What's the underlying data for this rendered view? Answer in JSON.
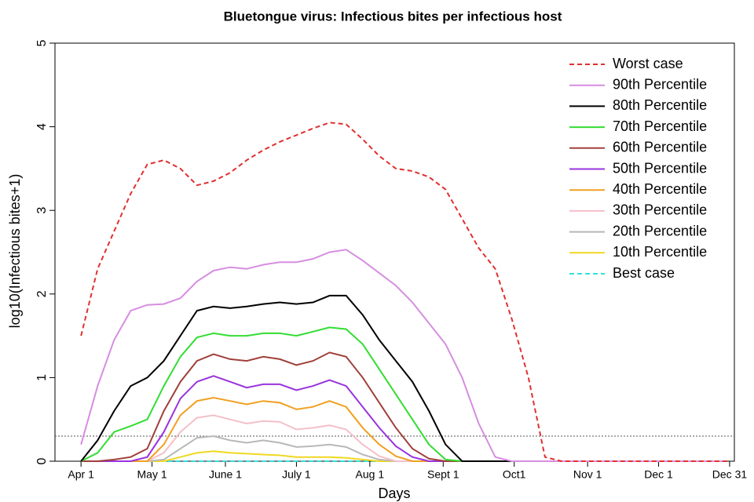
{
  "chart_data": {
    "type": "line",
    "title": "Bluetongue virus: Infectious bites per infectious host",
    "xlabel": "Days",
    "ylabel": "log10(Infectious bites+1)",
    "x": [
      0,
      7,
      14,
      21,
      28,
      35,
      42,
      49,
      56,
      63,
      70,
      77,
      84,
      91,
      98,
      105,
      112,
      119,
      126,
      133,
      140,
      147,
      154,
      161,
      168,
      175,
      182,
      189,
      196,
      203,
      210,
      217,
      224,
      231,
      238,
      245,
      252,
      259,
      266,
      273
    ],
    "xlim": [
      -11,
      276
    ],
    "ylim": [
      0,
      5
    ],
    "xticks": [
      {
        "value": 0,
        "label": "Apr 1"
      },
      {
        "value": 30,
        "label": "May 1"
      },
      {
        "value": 61,
        "label": "June 1"
      },
      {
        "value": 91,
        "label": "July 1"
      },
      {
        "value": 122,
        "label": "Aug 1"
      },
      {
        "value": 153,
        "label": "Sept 1"
      },
      {
        "value": 183,
        "label": "Oct1"
      },
      {
        "value": 214,
        "label": "Nov 1"
      },
      {
        "value": 244,
        "label": "Dec 1"
      },
      {
        "value": 274,
        "label": "Dec 31"
      }
    ],
    "yticks": [
      0,
      1,
      2,
      3,
      4,
      5
    ],
    "hline": 0.3,
    "legend": "top-right",
    "series": [
      {
        "name": "Worst case",
        "color": "#e03030",
        "dashed": true,
        "values": [
          1.5,
          2.3,
          2.75,
          3.2,
          3.55,
          3.6,
          3.5,
          3.3,
          3.35,
          3.45,
          3.6,
          3.72,
          3.82,
          3.9,
          3.98,
          4.05,
          4.03,
          3.85,
          3.65,
          3.5,
          3.47,
          3.4,
          3.25,
          2.9,
          2.55,
          2.3,
          1.7,
          1.0,
          0.05,
          0,
          0,
          0,
          0,
          0,
          0,
          0,
          0,
          0,
          0,
          0
        ]
      },
      {
        "name": "90th Percentile",
        "color": "#d68ee0",
        "dashed": false,
        "values": [
          0.2,
          0.9,
          1.45,
          1.8,
          1.87,
          1.88,
          1.95,
          2.15,
          2.28,
          2.32,
          2.3,
          2.35,
          2.38,
          2.38,
          2.42,
          2.5,
          2.53,
          2.4,
          2.25,
          2.1,
          1.9,
          1.65,
          1.4,
          1.0,
          0.45,
          0.05,
          0,
          0,
          0,
          0,
          0,
          0,
          0,
          0,
          0,
          0,
          0,
          0,
          0,
          0
        ]
      },
      {
        "name": "80th Percentile",
        "color": "#000000",
        "dashed": false,
        "values": [
          0,
          0.25,
          0.6,
          0.9,
          1.0,
          1.2,
          1.5,
          1.8,
          1.85,
          1.83,
          1.85,
          1.88,
          1.9,
          1.88,
          1.9,
          1.98,
          1.98,
          1.75,
          1.45,
          1.2,
          0.95,
          0.6,
          0.2,
          0,
          0,
          0,
          0,
          0,
          0,
          0,
          0,
          0,
          0,
          0,
          0,
          0,
          0,
          0,
          0,
          0
        ]
      },
      {
        "name": "70th Percentile",
        "color": "#33dd33",
        "dashed": false,
        "values": [
          0,
          0.1,
          0.35,
          0.42,
          0.5,
          0.9,
          1.25,
          1.48,
          1.53,
          1.5,
          1.5,
          1.53,
          1.53,
          1.5,
          1.55,
          1.6,
          1.58,
          1.4,
          1.1,
          0.8,
          0.5,
          0.2,
          0.02,
          0,
          0,
          0,
          0,
          0,
          0,
          0,
          0,
          0,
          0,
          0,
          0,
          0,
          0,
          0,
          0,
          0
        ]
      },
      {
        "name": "60th Percentile",
        "color": "#a0403a",
        "dashed": false,
        "values": [
          0,
          0,
          0.02,
          0.05,
          0.15,
          0.6,
          0.95,
          1.2,
          1.28,
          1.22,
          1.2,
          1.25,
          1.22,
          1.15,
          1.2,
          1.3,
          1.25,
          1.0,
          0.7,
          0.4,
          0.15,
          0.03,
          0,
          0,
          0,
          0,
          0,
          0,
          0,
          0,
          0,
          0,
          0,
          0,
          0,
          0,
          0,
          0,
          0,
          0
        ]
      },
      {
        "name": "50th Percentile",
        "color": "#9933dd",
        "dashed": false,
        "values": [
          0,
          0,
          0,
          0,
          0.05,
          0.35,
          0.75,
          0.95,
          1.02,
          0.95,
          0.88,
          0.92,
          0.92,
          0.85,
          0.9,
          0.97,
          0.9,
          0.65,
          0.4,
          0.18,
          0.05,
          0,
          0,
          0,
          0,
          0,
          0,
          0,
          0,
          0,
          0,
          0,
          0,
          0,
          0,
          0,
          0,
          0,
          0,
          0
        ]
      },
      {
        "name": "40th Percentile",
        "color": "#f0a020",
        "dashed": false,
        "values": [
          0,
          0,
          0,
          0,
          0,
          0.2,
          0.55,
          0.72,
          0.76,
          0.72,
          0.68,
          0.72,
          0.7,
          0.62,
          0.65,
          0.72,
          0.65,
          0.4,
          0.2,
          0.06,
          0,
          0,
          0,
          0,
          0,
          0,
          0,
          0,
          0,
          0,
          0,
          0,
          0,
          0,
          0,
          0,
          0,
          0,
          0,
          0
        ]
      },
      {
        "name": "30th Percentile",
        "color": "#f4c0c8",
        "dashed": false,
        "values": [
          0,
          0,
          0,
          0,
          0,
          0.1,
          0.35,
          0.52,
          0.55,
          0.5,
          0.45,
          0.48,
          0.47,
          0.38,
          0.4,
          0.43,
          0.38,
          0.2,
          0.06,
          0,
          0,
          0,
          0,
          0,
          0,
          0,
          0,
          0,
          0,
          0,
          0,
          0,
          0,
          0,
          0,
          0,
          0,
          0,
          0,
          0
        ]
      },
      {
        "name": "20th Percentile",
        "color": "#b8b8b8",
        "dashed": false,
        "values": [
          0,
          0,
          0,
          0,
          0,
          0.02,
          0.15,
          0.28,
          0.3,
          0.25,
          0.22,
          0.25,
          0.22,
          0.17,
          0.18,
          0.2,
          0.17,
          0.08,
          0.02,
          0,
          0,
          0,
          0,
          0,
          0,
          0,
          0,
          0,
          0,
          0,
          0,
          0,
          0,
          0,
          0,
          0,
          0,
          0,
          0,
          0
        ]
      },
      {
        "name": "10th Percentile",
        "color": "#f0d820",
        "dashed": false,
        "values": [
          0,
          0,
          0,
          0,
          0,
          0,
          0.05,
          0.1,
          0.12,
          0.1,
          0.09,
          0.08,
          0.07,
          0.05,
          0.05,
          0.05,
          0.04,
          0.02,
          0,
          0,
          0,
          0,
          0,
          0,
          0,
          0,
          0,
          0,
          0,
          0,
          0,
          0,
          0,
          0,
          0,
          0,
          0,
          0,
          0,
          0
        ]
      },
      {
        "name": "Best case",
        "color": "#33dddd",
        "dashed": true,
        "values": [
          0,
          0,
          0,
          0,
          0,
          0,
          0,
          0,
          0,
          0,
          0,
          0,
          0,
          0,
          0,
          0,
          0,
          0,
          0,
          0,
          0,
          0,
          0,
          0,
          0,
          0,
          0,
          0,
          0,
          0,
          0,
          0,
          0,
          0,
          0,
          0,
          0,
          0,
          0,
          0
        ]
      }
    ]
  }
}
